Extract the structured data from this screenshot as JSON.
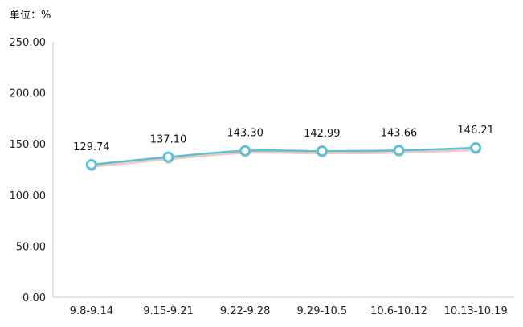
{
  "chart_data": {
    "type": "line",
    "unit_label": "单位：%",
    "categories": [
      "9.8-9.14",
      "9.15-9.21",
      "9.22-9.28",
      "9.29-10.5",
      "10.6-10.12",
      "10.13-10.19"
    ],
    "values": [
      129.74,
      137.1,
      143.3,
      142.99,
      143.66,
      146.21
    ],
    "value_labels": [
      "129.74",
      "137.10",
      "143.30",
      "142.99",
      "143.66",
      "146.21"
    ],
    "y_ticks": [
      "0.00",
      "50.00",
      "100.00",
      "150.00",
      "200.00",
      "250.00"
    ],
    "ylim": [
      0,
      250
    ],
    "grid": false,
    "line_color": "#5bc0d8",
    "shadow_color": "#e8b4a8",
    "marker_fill": "#ffffff"
  }
}
